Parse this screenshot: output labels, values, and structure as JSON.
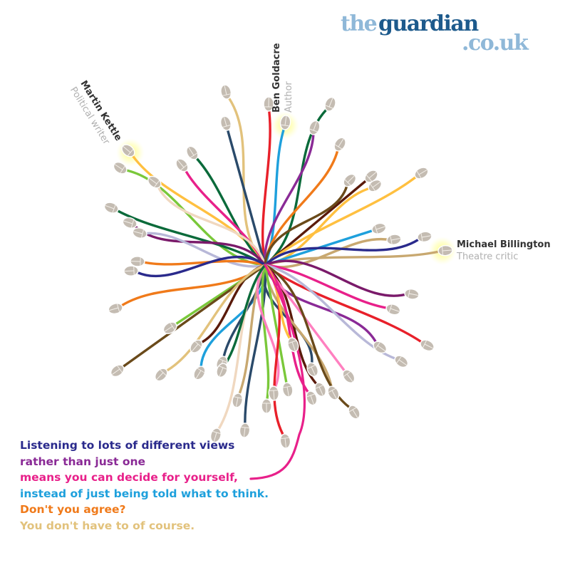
{
  "brand": {
    "the": "the",
    "guardian": "guardian",
    "domain": ".co.uk",
    "colors": {
      "light": "#8fb8d8",
      "dark": "#1d5a8c"
    }
  },
  "people": [
    {
      "name": "Martin Kettle",
      "role": "Political writer"
    },
    {
      "name": "Ben Goldacre",
      "role": "Author"
    },
    {
      "name": "Michael Billington",
      "role": "Theatre critic"
    }
  ],
  "caption": {
    "lines": [
      {
        "text": "Listening to lots of different views",
        "color": "#2a2a8c"
      },
      {
        "text": "rather than just one",
        "color": "#8a2a96"
      },
      {
        "text": "means you can decide for yourself,",
        "color": "#e8208a"
      },
      {
        "text": "instead of just being told what to think.",
        "color": "#1ea0dc"
      },
      {
        "text": "Don't you agree?",
        "color": "#f07a1a"
      },
      {
        "text": "You don't have to of course.",
        "color": "#e2c27c"
      }
    ]
  },
  "cable_colors": [
    "#2a2a8c",
    "#8a2a96",
    "#e8208a",
    "#1ea0dc",
    "#f07a1a",
    "#e2c27c",
    "#0a6a3a",
    "#7ac83a",
    "#e8202a",
    "#5a1a0a",
    "#f0d8c0",
    "#6a4a1a",
    "#ff80c0",
    "#b8b8d8",
    "#ffc040",
    "#2a4a6a",
    "#c8a870",
    "#7a1a6a"
  ],
  "icons": {
    "mouse": "computer-mouse-icon"
  }
}
